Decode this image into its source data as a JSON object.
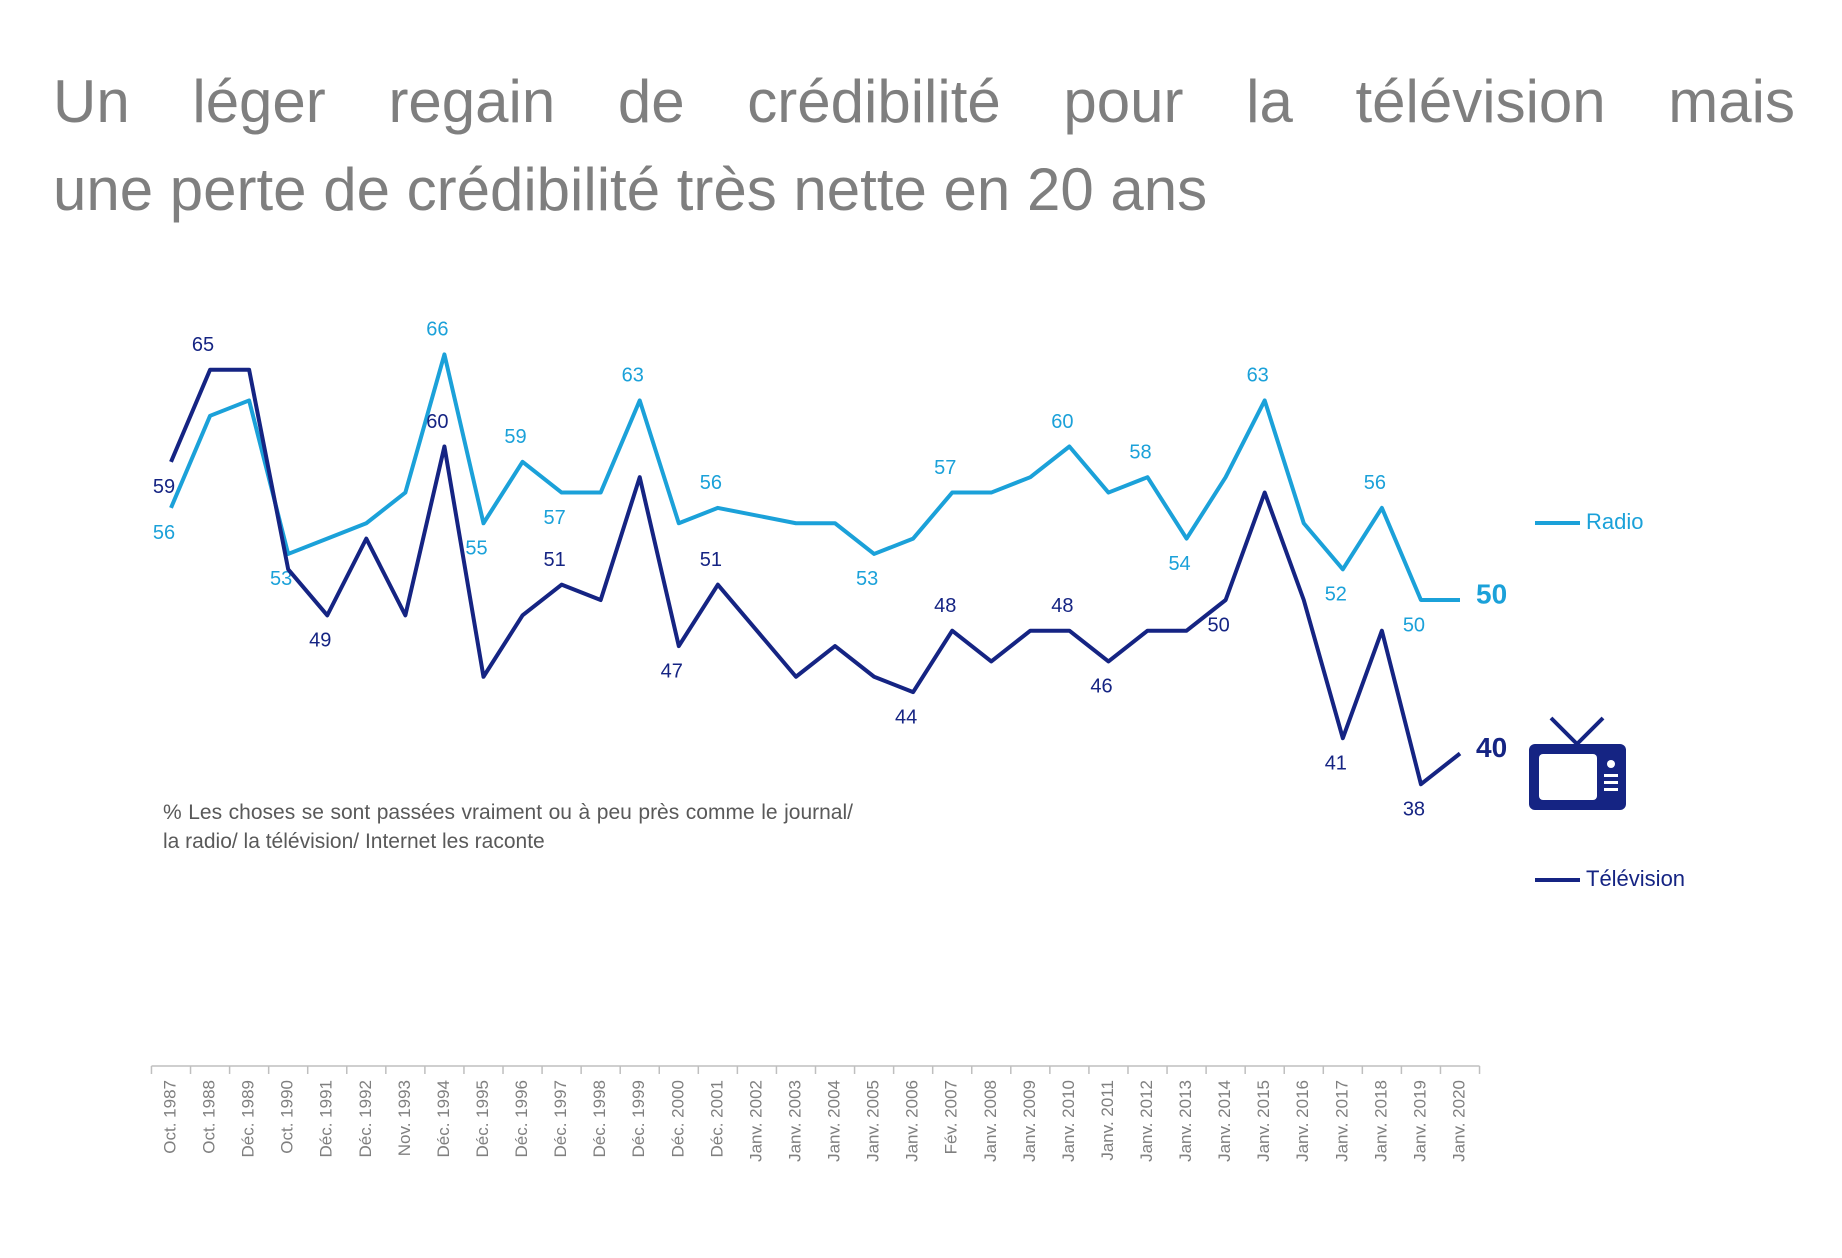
{
  "chart_data": {
    "type": "line",
    "title": [
      "Un léger regain de crédibilité pour la télévision mais",
      "une perte de crédibilité très nette en 20 ans"
    ],
    "note": "% Les choses se sont passées vraiment ou à peu près comme le journal/ la radio/ la télévision/ Internet les raconte",
    "categories": [
      "Oct. 1987",
      "Oct. 1988",
      "Déc. 1989",
      "Oct. 1990",
      "Déc. 1991",
      "Déc. 1992",
      "Nov. 1993",
      "Déc. 1994",
      "Déc. 1995",
      "Déc. 1996",
      "Déc. 1997",
      "Déc. 1998",
      "Déc. 1999",
      "Déc. 2000",
      "Déc. 2001",
      "Janv. 2002",
      "Janv. 2003",
      "Janv. 2004",
      "Janv. 2005",
      "Janv. 2006",
      "Fév. 2007",
      "Janv. 2008",
      "Janv. 2009",
      "Janv. 2010",
      "Janv. 2011",
      "Janv. 2012",
      "Janv. 2013",
      "Janv. 2014",
      "Janv. 2015",
      "Janv. 2016",
      "Janv. 2017",
      "Janv. 2018",
      "Janv. 2019",
      "Janv. 2020"
    ],
    "ylim": [
      30,
      70
    ],
    "series": [
      {
        "name": "Radio",
        "color": "#1ba1d9",
        "values": [
          56,
          62,
          63,
          53,
          54,
          55,
          57,
          66,
          55,
          59,
          57,
          57,
          63,
          55,
          56,
          55.5,
          55,
          55,
          53,
          54,
          57,
          57,
          58,
          60,
          57,
          58,
          54,
          58,
          63,
          55,
          52,
          56,
          50,
          50
        ],
        "value_labels": [
          "56",
          null,
          null,
          "53",
          null,
          null,
          null,
          "66",
          "55",
          "59",
          "57",
          null,
          "63",
          null,
          "56",
          null,
          null,
          null,
          "53",
          null,
          "57",
          null,
          null,
          "60",
          null,
          "58",
          "54",
          null,
          "63",
          null,
          "52",
          "56",
          "50",
          null
        ],
        "end_label": "50"
      },
      {
        "name": "Télévision",
        "color": "#152483",
        "values": [
          59,
          65,
          65,
          52,
          49,
          54,
          49,
          60,
          45,
          49,
          51,
          50,
          58,
          47,
          51,
          48,
          45,
          47,
          45,
          44,
          48,
          46,
          48,
          48,
          46,
          48,
          48,
          50,
          57,
          50,
          41,
          48,
          38,
          40
        ],
        "value_labels": [
          "59",
          "65",
          null,
          null,
          "49",
          null,
          null,
          "60",
          null,
          null,
          "51",
          null,
          null,
          "47",
          "51",
          null,
          null,
          null,
          null,
          "44",
          "48",
          null,
          null,
          "48",
          "46",
          null,
          null,
          "50",
          null,
          null,
          "41",
          null,
          "38",
          null
        ],
        "end_label": "40"
      }
    ]
  }
}
